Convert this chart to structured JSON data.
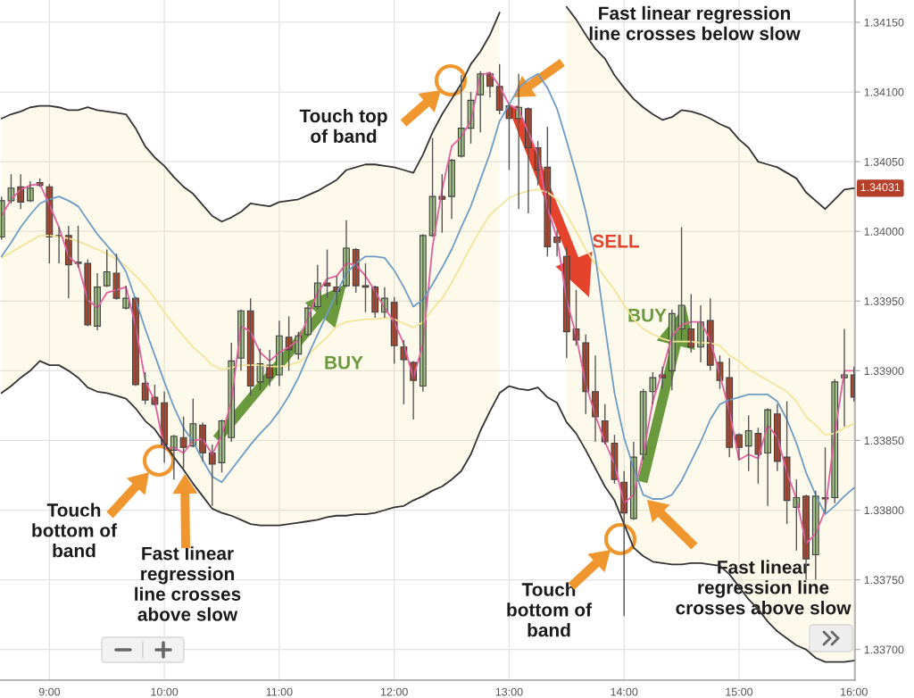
{
  "chart_data": {
    "type": "candlestick",
    "x": [
      8.5833,
      8.6667,
      8.75,
      8.8333,
      8.9167,
      9,
      9.0833,
      9.1667,
      9.25,
      9.3333,
      9.4167,
      9.5,
      9.5833,
      9.6667,
      9.75,
      9.8333,
      9.9167,
      10,
      10.0833,
      10.1667,
      10.25,
      10.3333,
      10.4167,
      10.5,
      10.5833,
      10.6667,
      10.75,
      10.8333,
      10.9167,
      11,
      11.0833,
      11.1667,
      11.25,
      11.3333,
      11.4167,
      11.5,
      11.5833,
      11.6667,
      11.75,
      11.8333,
      11.9167,
      12,
      12.0833,
      12.1667,
      12.25,
      12.3333,
      12.4167,
      12.5,
      12.5833,
      12.6667,
      12.75,
      12.8333,
      12.9167,
      13,
      13.0833,
      13.1667,
      13.25,
      13.3333,
      13.4167,
      13.5,
      13.5833,
      13.6667,
      13.75,
      13.8333,
      13.9167,
      14,
      14.0833,
      14.1667,
      14.25,
      14.3333,
      14.4167,
      14.5,
      14.5833,
      14.6667,
      14.75,
      14.8333,
      14.9167,
      15,
      15.0833,
      15.1667,
      15.25,
      15.3333,
      15.4167,
      15.5,
      15.5833,
      15.6667,
      15.75,
      15.8333,
      15.9167,
      16
    ],
    "ohlc": [
      [
        1.33996,
        1.34025,
        1.33994,
        1.34022
      ],
      [
        1.34022,
        1.34041,
        1.3402,
        1.34031
      ],
      [
        1.34032,
        1.34041,
        1.34016,
        1.34021
      ],
      [
        1.34022,
        1.34036,
        1.34021,
        1.34031
      ],
      [
        1.34035,
        1.34038,
        1.34032,
        1.34033
      ],
      [
        1.34032,
        1.34034,
        1.33977,
        1.33996
      ],
      [
        1.33997,
        1.34003,
        1.33977,
        1.33996
      ],
      [
        1.33997,
        1.34004,
        1.33952,
        1.33976
      ],
      [
        1.33977,
        1.34004,
        1.33974,
        1.33978
      ],
      [
        1.33977,
        1.3398,
        1.33932,
        1.33933
      ],
      [
        1.33932,
        1.3397,
        1.33929,
        1.3396
      ],
      [
        1.33961,
        1.33987,
        1.3396,
        1.33971
      ],
      [
        1.3397,
        1.33984,
        1.33951,
        1.33952
      ],
      [
        1.33945,
        1.33961,
        1.33944,
        1.33952
      ],
      [
        1.33952,
        1.33953,
        1.33889,
        1.3389
      ],
      [
        1.33891,
        1.33899,
        1.33876,
        1.33879
      ],
      [
        1.33881,
        1.3389,
        1.33875,
        1.33876
      ],
      [
        1.33877,
        1.33885,
        1.33834,
        1.33847
      ],
      [
        1.33843,
        1.33854,
        1.33822,
        1.33853
      ],
      [
        1.33852,
        1.33867,
        1.3383,
        1.33845
      ],
      [
        1.33846,
        1.3388,
        1.33845,
        1.33862
      ],
      [
        1.33861,
        1.33863,
        1.33835,
        1.33841
      ],
      [
        1.33841,
        1.33847,
        1.33803,
        1.33833
      ],
      [
        1.33834,
        1.33865,
        1.33827,
        1.33864
      ],
      [
        1.33852,
        1.3392,
        1.33849,
        1.33907
      ],
      [
        1.33909,
        1.33944,
        1.339,
        1.33943
      ],
      [
        1.33943,
        1.33952,
        1.33882,
        1.33889
      ],
      [
        1.33892,
        1.33916,
        1.33886,
        1.33905
      ],
      [
        1.33904,
        1.33915,
        1.33889,
        1.33895
      ],
      [
        1.33897,
        1.33936,
        1.33889,
        1.33925
      ],
      [
        1.33924,
        1.33939,
        1.339,
        1.33915
      ],
      [
        1.33912,
        1.33928,
        1.33908,
        1.33925
      ],
      [
        1.33926,
        1.33947,
        1.33925,
        1.33945
      ],
      [
        1.33946,
        1.33976,
        1.33944,
        1.33963
      ],
      [
        1.33963,
        1.33987,
        1.33952,
        1.33961
      ],
      [
        1.3396,
        1.33968,
        1.33947,
        1.33957
      ],
      [
        1.33961,
        1.34008,
        1.3396,
        1.33988
      ],
      [
        1.33987,
        1.33988,
        1.33956,
        1.33961
      ],
      [
        1.33961,
        1.33977,
        1.33942,
        1.3396
      ],
      [
        1.3396,
        1.33961,
        1.33938,
        1.33942
      ],
      [
        1.33942,
        1.3396,
        1.33938,
        1.33952
      ],
      [
        1.33949,
        1.33953,
        1.33905,
        1.33918
      ],
      [
        1.33917,
        1.33922,
        1.33876,
        1.33908
      ],
      [
        1.33906,
        1.33907,
        1.33865,
        1.33893
      ],
      [
        1.33889,
        1.33998,
        1.33885,
        1.33997
      ],
      [
        1.33997,
        1.34067,
        1.33996,
        1.34025
      ],
      [
        1.34025,
        1.34041,
        1.33999,
        1.34023
      ],
      [
        1.34025,
        1.34052,
        1.34009,
        1.34051
      ],
      [
        1.34054,
        1.34112,
        1.34053,
        1.34074
      ],
      [
        1.34074,
        1.341,
        1.34063,
        1.34094
      ],
      [
        1.34098,
        1.34115,
        1.34071,
        1.34113
      ],
      [
        1.34113,
        1.34114,
        1.34096,
        1.34104
      ],
      [
        1.34104,
        1.3412,
        1.34084,
        1.34087
      ],
      [
        1.3409,
        1.34091,
        1.34044,
        1.34081
      ],
      [
        1.34081,
        1.34113,
        1.34016,
        1.34089
      ],
      [
        1.34088,
        1.34089,
        1.34013,
        1.3406
      ],
      [
        1.3406,
        1.34065,
        1.34033,
        1.34044
      ],
      [
        1.34046,
        1.34075,
        1.33982,
        1.33989
      ],
      [
        1.33996,
        1.34001,
        1.33982,
        1.33992
      ],
      [
        1.33982,
        1.33989,
        1.33909,
        1.33928
      ],
      [
        1.3393,
        1.33958,
        1.33918,
        1.33922
      ],
      [
        1.3392,
        1.33926,
        1.33869,
        1.33885
      ],
      [
        1.33885,
        1.33911,
        1.33849,
        1.33867
      ],
      [
        1.33864,
        1.33876,
        1.33847,
        1.33849
      ],
      [
        1.33848,
        1.33854,
        1.33819,
        1.33822
      ],
      [
        1.3382,
        1.33828,
        1.33724,
        1.33798
      ],
      [
        1.33794,
        1.33849,
        1.33793,
        1.33838
      ],
      [
        1.3384,
        1.33887,
        1.33836,
        1.33885
      ],
      [
        1.33885,
        1.33899,
        1.33876,
        1.33895
      ],
      [
        1.33897,
        1.33903,
        1.33887,
        1.33895
      ],
      [
        1.339,
        1.33944,
        1.33886,
        1.33941
      ],
      [
        1.3393,
        1.34003,
        1.33922,
        1.33947
      ],
      [
        1.3393,
        1.33955,
        1.33913,
        1.33917
      ],
      [
        1.33917,
        1.33947,
        1.33906,
        1.33935
      ],
      [
        1.33936,
        1.33952,
        1.339,
        1.33904
      ],
      [
        1.33906,
        1.33911,
        1.33887,
        1.33893
      ],
      [
        1.33895,
        1.33909,
        1.33838,
        1.33845
      ],
      [
        1.33854,
        1.33855,
        1.33836,
        1.33845
      ],
      [
        1.33846,
        1.33868,
        1.33828,
        1.33857
      ],
      [
        1.33855,
        1.33859,
        1.33819,
        1.3384
      ],
      [
        1.33841,
        1.33873,
        1.33803,
        1.33872
      ],
      [
        1.33869,
        1.33876,
        1.33828,
        1.33835
      ],
      [
        1.33838,
        1.33878,
        1.3379,
        1.33807
      ],
      [
        1.33802,
        1.33822,
        1.33771,
        1.33809
      ],
      [
        1.3381,
        1.33811,
        1.3375,
        1.33765
      ],
      [
        1.33768,
        1.33814,
        1.3375,
        1.3381
      ],
      [
        1.33809,
        1.33845,
        1.33798,
        1.33808
      ],
      [
        1.33809,
        1.33894,
        1.33805,
        1.33892
      ],
      [
        1.33895,
        1.3393,
        1.3386,
        1.33897
      ],
      [
        1.33897,
        1.33903,
        1.33878,
        1.33881
      ]
    ],
    "colors": [
      "#a3c585",
      "#a3c585",
      "#b5452b",
      "#a3c585",
      "#b5452b",
      "#b5452b",
      "#b5452b",
      "#b5452b",
      "#a3c585",
      "#b5452b",
      "#a3c585",
      "#a3c585",
      "#b5452b",
      "#a3c585",
      "#b5452b",
      "#b5452b",
      "#b5452b",
      "#b5452b",
      "#a3c585",
      "#b5452b",
      "#a3c585",
      "#b5452b",
      "#b5452b",
      "#a3c585",
      "#a3c585",
      "#a3c585",
      "#b5452b",
      "#a3c585",
      "#b5452b",
      "#a3c585",
      "#b5452b",
      "#a3c585",
      "#a3c585",
      "#a3c585",
      "#b5452b",
      "#b5452b",
      "#a3c585",
      "#b5452b",
      "#b5452b",
      "#b5452b",
      "#a3c585",
      "#b5452b",
      "#b5452b",
      "#b5452b",
      "#a3c585",
      "#a3c585",
      "#b5452b",
      "#a3c585",
      "#a3c585",
      "#a3c585",
      "#a3c585",
      "#b5452b",
      "#b5452b",
      "#b5452b",
      "#a3c585",
      "#b5452b",
      "#b5452b",
      "#b5452b",
      "#b5452b",
      "#b5452b",
      "#b5452b",
      "#b5452b",
      "#b5452b",
      "#b5452b",
      "#b5452b",
      "#b5452b",
      "#a3c585",
      "#a3c585",
      "#a3c585",
      "#b5452b",
      "#a3c585",
      "#a3c585",
      "#b5452b",
      "#a3c585",
      "#b5452b",
      "#b5452b",
      "#b5452b",
      "#b5452b",
      "#a3c585",
      "#b5452b",
      "#a3c585",
      "#b5452b",
      "#b5452b",
      "#a3c585",
      "#b5452b",
      "#a3c585",
      "#b5452b",
      "#a3c585",
      "#a3c585",
      "#b5452b"
    ],
    "series": [
      {
        "type": "line",
        "color": "#f3e49c",
        "values": [
          1.33981,
          1.33985,
          1.33989,
          1.33993,
          1.33997,
          1.33997,
          1.33996,
          1.33995,
          1.33993,
          1.3399,
          1.33987,
          1.33984,
          1.3398,
          1.33975,
          1.33968,
          1.33961,
          1.33952,
          1.33942,
          1.33933,
          1.33925,
          1.33917,
          1.33911,
          1.33904,
          1.33901,
          1.33902,
          1.33904,
          1.33904,
          1.33904,
          1.33903,
          1.33903,
          1.33904,
          1.33906,
          1.33911,
          1.33918,
          1.33924,
          1.33932,
          1.33935,
          1.33936,
          1.33937,
          1.33937,
          1.33938,
          1.33937,
          1.33934,
          1.33931,
          1.33935,
          1.33944,
          1.33952,
          1.33963,
          1.33976,
          1.33989,
          1.34001,
          1.34012,
          1.34018,
          1.34024,
          1.34027,
          1.34029,
          1.3403,
          1.34028,
          1.34023,
          1.34012,
          1.34,
          1.33987,
          1.33977,
          1.33967,
          1.33958,
          1.33947,
          1.33937,
          1.3393,
          1.33926,
          1.33923,
          1.33921,
          1.33921,
          1.33921,
          1.3392,
          1.3392,
          1.33918,
          1.33911,
          1.33907,
          1.33901,
          1.33897,
          1.33893,
          1.33889,
          1.33885,
          1.33878,
          1.33867,
          1.33861,
          1.33854,
          1.33855,
          1.33859,
          1.33862
        ],
        "upper": [
          1.34081,
          1.34084,
          1.34086,
          1.34089,
          1.3409,
          1.3409,
          1.34089,
          1.34087,
          1.34087,
          1.34089,
          1.34087,
          1.34086,
          1.34085,
          1.34084,
          1.34074,
          1.34061,
          1.34053,
          1.34047,
          1.34039,
          1.34032,
          1.34027,
          1.34019,
          1.34011,
          1.34007,
          1.3401,
          1.34014,
          1.3402,
          1.34019,
          1.34018,
          1.34021,
          1.34022,
          1.34023,
          1.34026,
          1.34029,
          1.34033,
          1.34037,
          1.34044,
          1.34046,
          1.34048,
          1.34048,
          1.34047,
          1.34046,
          1.34044,
          1.34042,
          1.34055,
          1.34071,
          1.34084,
          1.34095,
          1.34106,
          1.3412,
          1.34129,
          1.34141,
          1.34157,
          null,
          null,
          null,
          null,
          null,
          null,
          1.34161,
          1.34152,
          1.34141,
          1.34131,
          1.34124,
          1.34112,
          1.34103,
          1.34095,
          1.34089,
          1.34084,
          1.3408,
          1.34082,
          1.34087,
          1.34086,
          1.34084,
          1.34081,
          1.34077,
          1.34074,
          1.34066,
          1.3406,
          1.3405,
          1.34048,
          1.34046,
          1.34042,
          1.34038,
          1.34028,
          1.34022,
          1.34016,
          1.34023,
          1.3403,
          1.34031
        ],
        "lower": [
          1.33884,
          1.33889,
          1.33895,
          1.339,
          1.33907,
          1.33904,
          1.33904,
          1.339,
          1.33895,
          1.33888,
          1.33885,
          1.33884,
          1.33882,
          1.3388,
          1.33873,
          1.33864,
          1.33858,
          1.33848,
          1.33838,
          1.33829,
          1.33819,
          1.3381,
          1.33801,
          1.33798,
          1.33796,
          1.33793,
          1.3379,
          1.33789,
          1.33789,
          1.33789,
          1.3379,
          1.33791,
          1.33792,
          1.33793,
          1.33795,
          1.33796,
          1.33796,
          1.33797,
          1.33797,
          1.33798,
          1.338,
          1.33802,
          1.33803,
          1.33807,
          1.3381,
          1.33814,
          1.33817,
          1.33822,
          1.33828,
          1.3384,
          1.33857,
          1.33871,
          1.33884,
          null,
          null,
          null,
          null,
          null,
          null,
          1.33863,
          1.33855,
          1.33843,
          1.3383,
          1.33817,
          1.33807,
          1.3379,
          1.33773,
          1.33767,
          1.33763,
          1.33762,
          1.33761,
          1.33761,
          1.33762,
          1.33762,
          1.33761,
          1.3376,
          1.33754,
          1.33745,
          1.33736,
          1.33729,
          1.3372,
          1.33713,
          1.33708,
          1.33703,
          1.337,
          1.33694,
          1.33691,
          1.33691,
          1.33691,
          1.33692
        ]
      },
      {
        "type": "line",
        "color": "#e2609e",
        "values": [
          1.34011,
          1.34023,
          1.3403,
          1.34033,
          1.34034,
          1.34019,
          1.34003,
          1.33982,
          1.33976,
          1.33951,
          1.33945,
          1.33956,
          1.33958,
          1.3396,
          1.33932,
          1.33893,
          1.33878,
          1.33844,
          1.33845,
          1.33841,
          1.3385,
          1.33851,
          1.3384,
          1.33854,
          1.33878,
          1.33932,
          1.33928,
          1.33913,
          1.33907,
          1.33913,
          1.33917,
          1.33922,
          1.33938,
          1.33956,
          1.33966,
          1.33968,
          1.33977,
          1.33976,
          1.33968,
          1.33957,
          1.33945,
          1.33935,
          1.33919,
          1.33895,
          1.33919,
          1.33989,
          1.3403,
          1.34061,
          1.34068,
          1.34079,
          1.34112,
          1.34114,
          1.34104,
          1.34091,
          1.34087,
          1.34071,
          1.34055,
          1.34017,
          1.33995,
          1.33951,
          1.33925,
          1.3389,
          1.33868,
          1.33849,
          1.33833,
          1.33805,
          1.33811,
          1.3384,
          1.33878,
          1.339,
          1.33925,
          1.33933,
          1.33935,
          1.33935,
          1.33922,
          1.33897,
          1.33871,
          1.33836,
          1.3384,
          1.33837,
          1.33861,
          1.33852,
          1.33827,
          1.33808,
          1.33776,
          1.33783,
          1.338,
          1.33855,
          1.339,
          1.339
        ]
      },
      {
        "type": "line",
        "color": "#6f9cc4",
        "values": [
          1.33982,
          1.33992,
          1.34003,
          1.34012,
          1.3402,
          1.34023,
          1.34025,
          1.34022,
          1.34018,
          1.34008,
          1.33998,
          1.3399,
          1.33982,
          1.33971,
          1.33951,
          1.3393,
          1.33911,
          1.33892,
          1.33874,
          1.33859,
          1.33849,
          1.33836,
          1.33824,
          1.3382,
          1.33829,
          1.33838,
          1.33847,
          1.33855,
          1.33862,
          1.33871,
          1.33882,
          1.33895,
          1.33911,
          1.33926,
          1.33941,
          1.33956,
          1.3397,
          1.33977,
          1.33982,
          1.33982,
          1.33981,
          1.33972,
          1.3396,
          1.33946,
          1.33951,
          1.33962,
          1.33974,
          1.33987,
          1.34003,
          1.34018,
          1.34037,
          1.34056,
          1.34079,
          1.34091,
          1.34103,
          1.34109,
          1.34113,
          1.34103,
          1.34088,
          1.34065,
          1.34041,
          1.34014,
          1.33982,
          1.33932,
          1.33884,
          1.33852,
          1.3383,
          1.33811,
          1.33808,
          1.33808,
          1.33811,
          1.33821,
          1.33835,
          1.33849,
          1.33865,
          1.33876,
          1.33879,
          1.33881,
          1.33883,
          1.33883,
          1.33883,
          1.33878,
          1.33865,
          1.33848,
          1.33827,
          1.33811,
          1.33797,
          1.33803,
          1.3381,
          1.33816
        ]
      },
      {
        "type": "line",
        "color": "#333333",
        "values": [
          1.34081,
          1.34084,
          1.34086,
          1.34089,
          1.3409,
          1.3409,
          1.34089,
          1.34087,
          1.34087,
          1.34089,
          1.34087,
          1.34086,
          1.34085,
          1.34084,
          1.34074,
          1.34061,
          1.34053,
          1.34047,
          1.34039,
          1.34032,
          1.34027,
          1.34019,
          1.34011,
          1.34007,
          1.3401,
          1.34014,
          1.3402,
          1.34019,
          1.34018,
          1.34021,
          1.34022,
          1.34023,
          1.34026,
          1.34029,
          1.34033,
          1.34037,
          1.34044,
          1.34046,
          1.34048,
          1.34048,
          1.34047,
          1.34046,
          1.34044,
          1.34042,
          1.34055,
          1.34071,
          1.34084,
          1.34095,
          1.34106,
          1.3412,
          1.34129,
          1.34141,
          1.34157,
          null,
          null,
          null,
          null,
          null,
          null,
          1.34161,
          1.34152,
          1.34141,
          1.34131,
          1.34124,
          1.34112,
          1.34103,
          1.34095,
          1.34089,
          1.34084,
          1.3408,
          1.34082,
          1.34087,
          1.34086,
          1.34084,
          1.34081,
          1.34077,
          1.34074,
          1.34066,
          1.3406,
          1.3405,
          1.34048,
          1.34046,
          1.34042,
          1.34038,
          1.34028,
          1.34022,
          1.34016,
          1.34023,
          1.3403,
          1.34031
        ]
      },
      {
        "type": "line",
        "color": "#333333",
        "values": [
          1.33884,
          1.33889,
          1.33895,
          1.339,
          1.33907,
          1.33904,
          1.33904,
          1.339,
          1.33895,
          1.33888,
          1.33885,
          1.33884,
          1.33882,
          1.3388,
          1.33873,
          1.33864,
          1.33858,
          1.33848,
          1.33838,
          1.33829,
          1.33819,
          1.3381,
          1.33801,
          1.33798,
          1.33796,
          1.33793,
          1.3379,
          1.33789,
          1.33789,
          1.33789,
          1.3379,
          1.33791,
          1.33792,
          1.33793,
          1.33795,
          1.33796,
          1.33796,
          1.33797,
          1.33797,
          1.33798,
          1.338,
          1.33802,
          1.33803,
          1.33807,
          1.3381,
          1.33814,
          1.33817,
          1.33822,
          1.33828,
          1.3384,
          1.33857,
          1.33871,
          1.33884,
          1.33889,
          1.33887,
          1.33886,
          1.33888,
          1.33881,
          1.33877,
          1.33863,
          1.33855,
          1.33843,
          1.3383,
          1.33817,
          1.33807,
          1.3379,
          1.33773,
          1.33767,
          1.33763,
          1.33762,
          1.33761,
          1.33761,
          1.33762,
          1.33762,
          1.33761,
          1.3376,
          1.33754,
          1.33745,
          1.33736,
          1.33729,
          1.3372,
          1.33713,
          1.33708,
          1.33703,
          1.337,
          1.33694,
          1.33691,
          1.33691,
          1.33691,
          1.33692
        ]
      }
    ],
    "xlim": [
      8.57,
      16.01
    ],
    "xticks": [
      {
        "value": 9,
        "label": "9:00"
      },
      {
        "value": 10,
        "label": "10:00"
      },
      {
        "value": 11,
        "label": "11:00"
      },
      {
        "value": 12,
        "label": "12:00"
      },
      {
        "value": 13,
        "label": "13:00"
      },
      {
        "value": 14,
        "label": "14:00"
      },
      {
        "value": 15,
        "label": "15:00"
      },
      {
        "value": 16,
        "label": "16:00"
      }
    ],
    "ylim": [
      1.33678,
      1.34166
    ],
    "yticks": [
      {
        "value": 1.337,
        "label": "1.33700"
      },
      {
        "value": 1.3375,
        "label": "1.33750"
      },
      {
        "value": 1.338,
        "label": "1.33800"
      },
      {
        "value": 1.3385,
        "label": "1.33850"
      },
      {
        "value": 1.339,
        "label": "1.33900"
      },
      {
        "value": 1.3395,
        "label": "1.33950"
      },
      {
        "value": 1.34,
        "label": "1.34000"
      },
      {
        "value": 1.3405,
        "label": "1.34050"
      },
      {
        "value": 1.341,
        "label": "1.34100"
      },
      {
        "value": 1.3415,
        "label": "1.34150"
      }
    ],
    "grid": true,
    "annotations": [
      "Touch top\nof band",
      "Fast linear regression\nline crosses below slow",
      "SELL",
      "BUY",
      "BUY",
      "Touch\nbottom of\nband",
      "Fast linear\nregression\nline crosses\nabove slow",
      "Touch\nbottom of\nband",
      "Fast linear\nregression line\ncrosses above slow",
      {
        "text": "1.34031",
        "x": 16,
        "y": 1.34031
      }
    ]
  }
}
